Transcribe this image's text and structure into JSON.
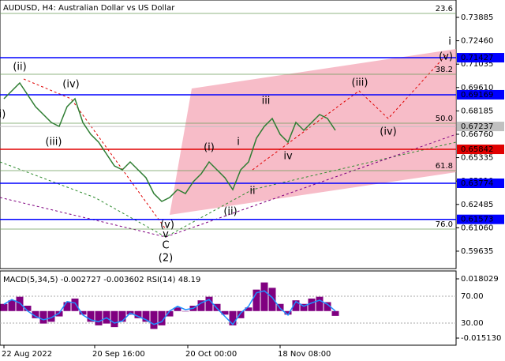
{
  "chart_data": {
    "type": "line",
    "title": "AUDUSD, H4:  Australian Dollar vs US Dollar",
    "color": "#2e7d32",
    "values": [
      0.68926,
      0.69407,
      0.69889,
      0.69166,
      0.68444,
      0.67963,
      0.67481,
      0.6724,
      0.68444,
      0.68926,
      0.67481,
      0.66759,
      0.66277,
      0.65555,
      0.64833,
      0.64592,
      0.65074,
      0.64592,
      0.64111,
      0.63148,
      0.62666,
      0.62907,
      0.63388,
      0.63148,
      0.6387,
      0.64351,
      0.65074,
      0.64592,
      0.64111,
      0.63388,
      0.64592,
      0.65074,
      0.66518,
      0.6724,
      0.67722,
      0.66759,
      0.66277,
      0.67481,
      0.66999,
      0.67481,
      0.67963,
      0.67722,
      0.66999
    ],
    "xlim": [
      -0.5,
      57.3
    ],
    "xticks": [
      {
        "value": 0,
        "label": "22 Aug 2022"
      },
      {
        "value": 11.5,
        "label": "20 Sep 16:00"
      },
      {
        "value": 23.3,
        "label": "20 Oct 00:00"
      },
      {
        "value": 35,
        "label": "18 Nov 08:00"
      }
    ],
    "ylim": [
      0.58574,
      0.74944
    ],
    "yticks": [
      0.73885,
      {
        "value": 0.7246,
        "label": "0.72460"
      },
      0.71035,
      {
        "value": 0.6961,
        "label": "0.69610"
      },
      0.68185,
      {
        "value": 0.6676,
        "label": "0.66760"
      },
      0.65335,
      {
        "value": 0.6391,
        "label": "0.63910"
      },
      0.62485,
      {
        "value": 0.6106,
        "label": "0.61060"
      },
      0.59635
    ],
    "levels": [
      {
        "value": 0.71427,
        "color": "#0000ff"
      },
      {
        "value": 0.69169,
        "color": "#0000ff"
      },
      {
        "value": 0.67237,
        "color": "#c0c0c0"
      },
      {
        "value": 0.65842,
        "color": "#e00000"
      },
      {
        "value": 0.63774,
        "color": "#0000ff"
      },
      {
        "value": 0.61573,
        "color": "#0000ff"
      }
    ],
    "fib_levels": [
      {
        "label": "23.6",
        "value": 0.74126
      },
      {
        "label": "38.2",
        "value": 0.70418
      },
      {
        "label": "50.0",
        "value": 0.67433
      },
      {
        "label": "61.8",
        "value": 0.64544
      },
      {
        "label": "76.0",
        "value": 0.60981
      }
    ],
    "annotations": [
      {
        "text": "i)",
        "x": -0.2,
        "y": 0.67963,
        "color": "#e00000"
      },
      {
        "text": "(ii)",
        "x": 2,
        "y": 0.70852,
        "color": "#e00000"
      },
      {
        "text": "(iii)",
        "x": 6.3,
        "y": 0.66277,
        "color": "#e00000"
      },
      {
        "text": "(iv)",
        "x": 8.5,
        "y": 0.69792,
        "color": "#e00000"
      },
      {
        "text": "(v)",
        "x": 20.7,
        "y": 0.61222,
        "color": "#e00000"
      },
      {
        "text": "v",
        "x": 20.5,
        "y": 0.60644,
        "color": "#0000ff"
      },
      {
        "text": "C",
        "x": 20.5,
        "y": 0.5997,
        "color": "#e00000"
      },
      {
        "text": "(2)",
        "x": 20.5,
        "y": 0.59199,
        "color": "#2e8b2e"
      },
      {
        "text": "(i)",
        "x": 26,
        "y": 0.6594,
        "color": "#e00000"
      },
      {
        "text": "(ii)",
        "x": 28.7,
        "y": 0.6204,
        "color": "#e00000"
      },
      {
        "text": "i",
        "x": 29.7,
        "y": 0.66277,
        "color": "#777777"
      },
      {
        "text": "ii",
        "x": 31.5,
        "y": 0.63292,
        "color": "#777777"
      },
      {
        "text": "iii",
        "x": 33.2,
        "y": 0.68781,
        "color": "#777777"
      },
      {
        "text": "iv",
        "x": 36,
        "y": 0.65411,
        "color": "#777777"
      },
      {
        "text": "(iii)",
        "x": 45.1,
        "y": 0.69889,
        "color": "#e00000"
      },
      {
        "text": "(iv)",
        "x": 48.7,
        "y": 0.66903,
        "color": "#e00000"
      },
      {
        "text": "(v)",
        "x": 56,
        "y": 0.71478,
        "color": "#e00000"
      },
      {
        "text": "i",
        "x": 56.5,
        "y": 0.72392,
        "color": "#0000ff"
      }
    ],
    "indicator": {
      "title": "MACD(5,34,5) -0.002727 -0.003602 RSI(14) 48.19",
      "macd_color": "#800080",
      "rsi_color": "#1e90ff",
      "macd": [
        0.004,
        0.006,
        0.008,
        0.003,
        -0.004,
        -0.007,
        -0.006,
        -0.003,
        0.005,
        0.007,
        -0.002,
        -0.006,
        -0.008,
        -0.007,
        -0.009,
        -0.006,
        -0.002,
        -0.004,
        -0.006,
        -0.01,
        -0.008,
        -0.003,
        0.002,
        0,
        0.003,
        0.006,
        0.008,
        0.004,
        -0.002,
        -0.008,
        -0.004,
        0.002,
        0.012,
        0.016,
        0.013,
        0.004,
        -0.002,
        0.006,
        0.004,
        0.007,
        0.008,
        0.005,
        -0.0027
      ],
      "rsi": [
        58,
        65,
        60,
        48,
        40,
        35,
        38,
        45,
        62,
        60,
        42,
        35,
        32,
        38,
        30,
        33,
        45,
        40,
        35,
        28,
        32,
        48,
        55,
        50,
        52,
        60,
        65,
        52,
        40,
        28,
        45,
        55,
        75,
        78,
        68,
        52,
        42,
        62,
        55,
        60,
        64,
        58,
        48
      ],
      "macd_lim": [
        -0.01911,
        0.02245
      ],
      "macd_ticks": [
        0.018029,
        {
          "value": -0.01513,
          "label": "-0.015130"
        }
      ],
      "rsi_lim": [
        -2.9,
        107.6
      ],
      "rsi_ticks": [
        {
          "value": 70,
          "label": "70.00"
        },
        {
          "value": 30,
          "label": "30.00"
        }
      ]
    }
  }
}
